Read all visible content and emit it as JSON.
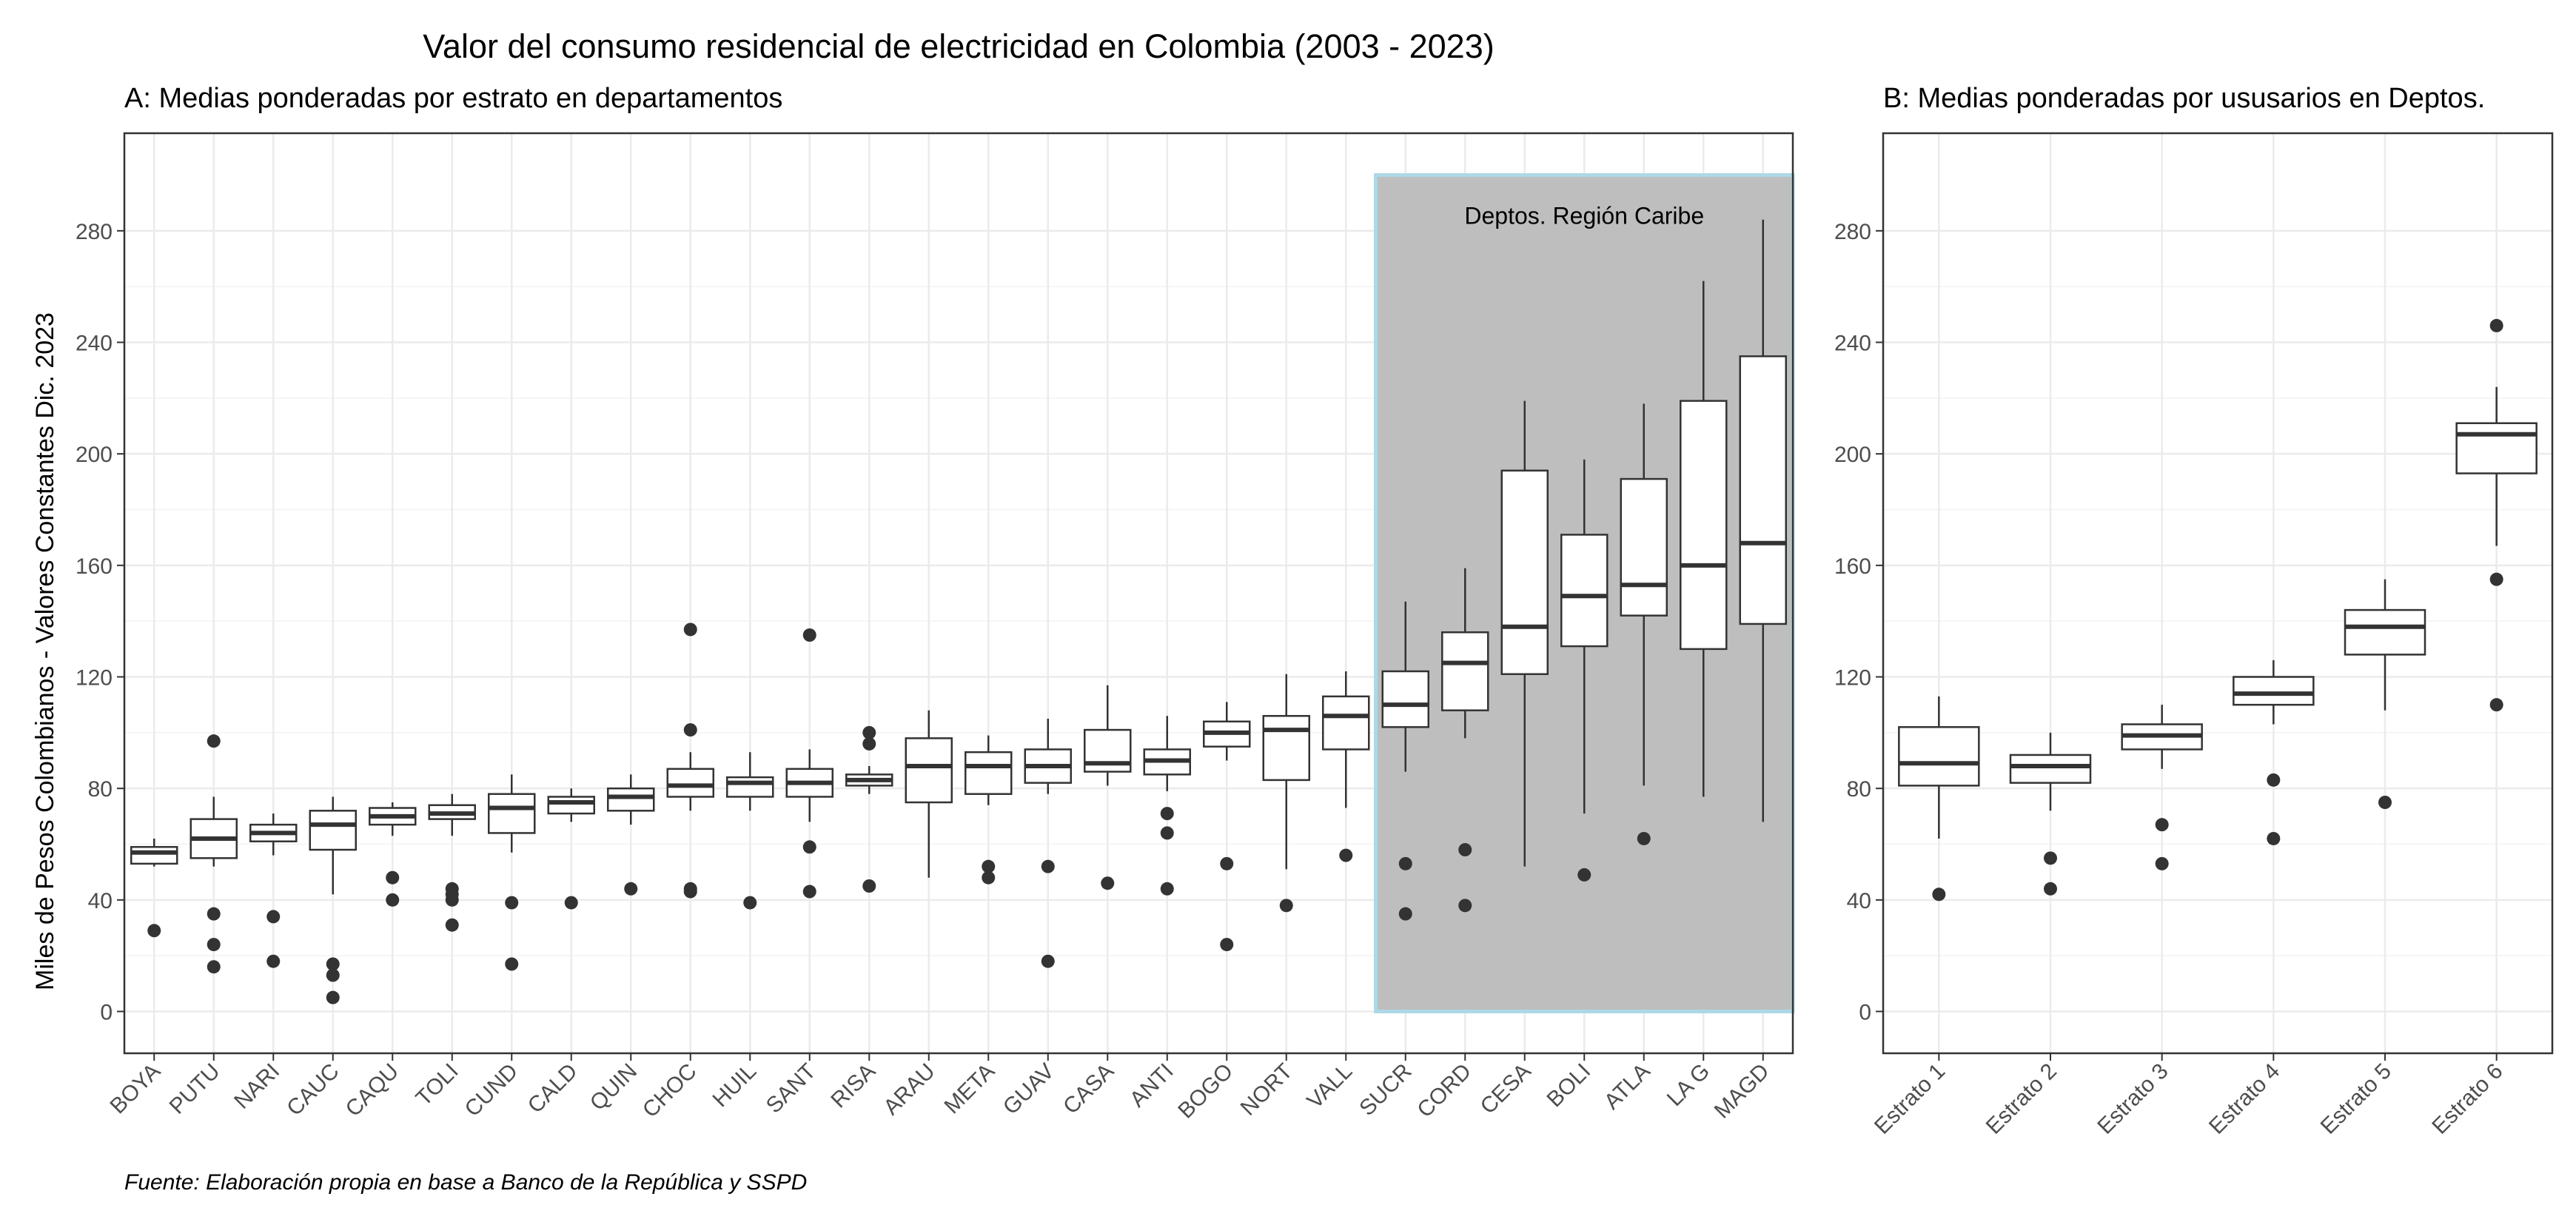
{
  "figure": {
    "title": "Valor del consumo residencial de electricidad en Colombia (2003 - 2023)",
    "caption": "Fuente: Elaboración propia en base a Banco de la República y SSPD"
  },
  "chart_data": [
    {
      "type": "boxplot",
      "subtitle": "A: Medias ponderadas por estrato en departamentos",
      "ylabel": "Miles de Pesos Colombianos - Valores Constantes Dic. 2023",
      "ylim": [
        -15,
        315
      ],
      "yticks": [
        0,
        40,
        80,
        120,
        160,
        200,
        240,
        280
      ],
      "grid": true,
      "highlight": {
        "label": "Deptos. Región Caribe",
        "from": "SUCR",
        "to": "MAGD",
        "fill": "#bebebe",
        "border": "#add8e6",
        "y_range": [
          0,
          300
        ]
      },
      "categories": [
        "BOYA",
        "PUTU",
        "NARI",
        "CAUC",
        "CAQU",
        "TOLI",
        "CUND",
        "CALD",
        "QUIN",
        "CHOC",
        "HUIL",
        "SANT",
        "RISA",
        "ARAU",
        "META",
        "GUAV",
        "CASA",
        "ANTI",
        "BOGO",
        "NORT",
        "VALL",
        "SUCR",
        "CORD",
        "CESA",
        "BOLI",
        "ATLA",
        "LA G",
        "MAGD"
      ],
      "boxes": [
        {
          "min": 52,
          "q1": 53,
          "median": 57,
          "q3": 59,
          "max": 62,
          "outliers": [
            29
          ]
        },
        {
          "min": 52,
          "q1": 55,
          "median": 62,
          "q3": 69,
          "max": 77,
          "outliers": [
            97,
            35,
            24,
            16
          ]
        },
        {
          "min": 56,
          "q1": 61,
          "median": 64,
          "q3": 67,
          "max": 71,
          "outliers": [
            34,
            18
          ]
        },
        {
          "min": 42,
          "q1": 58,
          "median": 67,
          "q3": 72,
          "max": 77,
          "outliers": [
            17,
            13,
            5
          ]
        },
        {
          "min": 63,
          "q1": 67,
          "median": 70,
          "q3": 73,
          "max": 75,
          "outliers": [
            48,
            40
          ]
        },
        {
          "min": 63,
          "q1": 69,
          "median": 71,
          "q3": 74,
          "max": 78,
          "outliers": [
            44,
            42,
            40,
            31
          ]
        },
        {
          "min": 57,
          "q1": 64,
          "median": 73,
          "q3": 78,
          "max": 85,
          "outliers": [
            39,
            17
          ]
        },
        {
          "min": 68,
          "q1": 71,
          "median": 75,
          "q3": 77,
          "max": 80,
          "outliers": [
            39
          ]
        },
        {
          "min": 67,
          "q1": 72,
          "median": 77,
          "q3": 80,
          "max": 85,
          "outliers": [
            44
          ]
        },
        {
          "min": 72,
          "q1": 77,
          "median": 81,
          "q3": 87,
          "max": 93,
          "outliers": [
            137,
            101,
            44,
            43
          ]
        },
        {
          "min": 72,
          "q1": 77,
          "median": 82,
          "q3": 84,
          "max": 93,
          "outliers": [
            39
          ]
        },
        {
          "min": 68,
          "q1": 77,
          "median": 82,
          "q3": 87,
          "max": 94,
          "outliers": [
            135,
            59,
            43
          ]
        },
        {
          "min": 78,
          "q1": 81,
          "median": 83,
          "q3": 85,
          "max": 88,
          "outliers": [
            100,
            96,
            45
          ]
        },
        {
          "min": 48,
          "q1": 75,
          "median": 88,
          "q3": 98,
          "max": 108,
          "outliers": []
        },
        {
          "min": 74,
          "q1": 78,
          "median": 88,
          "q3": 93,
          "max": 99,
          "outliers": [
            52,
            48
          ]
        },
        {
          "min": 78,
          "q1": 82,
          "median": 88,
          "q3": 94,
          "max": 105,
          "outliers": [
            52,
            18
          ]
        },
        {
          "min": 81,
          "q1": 86,
          "median": 89,
          "q3": 101,
          "max": 117,
          "outliers": [
            46
          ]
        },
        {
          "min": 79,
          "q1": 85,
          "median": 90,
          "q3": 94,
          "max": 106,
          "outliers": [
            71,
            64,
            44
          ]
        },
        {
          "min": 90,
          "q1": 95,
          "median": 100,
          "q3": 104,
          "max": 111,
          "outliers": [
            53,
            24
          ]
        },
        {
          "min": 51,
          "q1": 83,
          "median": 101,
          "q3": 106,
          "max": 121,
          "outliers": [
            38
          ]
        },
        {
          "min": 73,
          "q1": 94,
          "median": 106,
          "q3": 113,
          "max": 122,
          "outliers": [
            56
          ]
        },
        {
          "min": 86,
          "q1": 102,
          "median": 110,
          "q3": 122,
          "max": 147,
          "outliers": [
            53,
            35
          ]
        },
        {
          "min": 98,
          "q1": 108,
          "median": 125,
          "q3": 136,
          "max": 159,
          "outliers": [
            58,
            38
          ]
        },
        {
          "min": 52,
          "q1": 121,
          "median": 138,
          "q3": 194,
          "max": 219,
          "outliers": []
        },
        {
          "min": 71,
          "q1": 131,
          "median": 149,
          "q3": 171,
          "max": 198,
          "outliers": [
            49
          ]
        },
        {
          "min": 81,
          "q1": 142,
          "median": 153,
          "q3": 191,
          "max": 218,
          "outliers": [
            62
          ]
        },
        {
          "min": 77,
          "q1": 130,
          "median": 160,
          "q3": 219,
          "max": 262,
          "outliers": []
        },
        {
          "min": 68,
          "q1": 139,
          "median": 168,
          "q3": 235,
          "max": 284,
          "outliers": []
        }
      ]
    },
    {
      "type": "boxplot",
      "subtitle": "B: Medias ponderadas por ususarios en Deptos.",
      "ylim": [
        -15,
        315
      ],
      "yticks": [
        0,
        40,
        80,
        120,
        160,
        200,
        240,
        280
      ],
      "grid": true,
      "categories": [
        "Estrato 1",
        "Estrato 2",
        "Estrato 3",
        "Estrato 4",
        "Estrato 5",
        "Estrato 6"
      ],
      "boxes": [
        {
          "min": 62,
          "q1": 81,
          "median": 89,
          "q3": 102,
          "max": 113,
          "outliers": [
            42
          ]
        },
        {
          "min": 72,
          "q1": 82,
          "median": 88,
          "q3": 92,
          "max": 100,
          "outliers": [
            55,
            44
          ]
        },
        {
          "min": 87,
          "q1": 94,
          "median": 99,
          "q3": 103,
          "max": 110,
          "outliers": [
            67,
            53
          ]
        },
        {
          "min": 103,
          "q1": 110,
          "median": 114,
          "q3": 120,
          "max": 126,
          "outliers": [
            83,
            62
          ]
        },
        {
          "min": 108,
          "q1": 128,
          "median": 138,
          "q3": 144,
          "max": 155,
          "outliers": [
            75
          ]
        },
        {
          "min": 167,
          "q1": 193,
          "median": 207,
          "q3": 211,
          "max": 224,
          "outliers": [
            246,
            155,
            110
          ]
        }
      ]
    }
  ]
}
